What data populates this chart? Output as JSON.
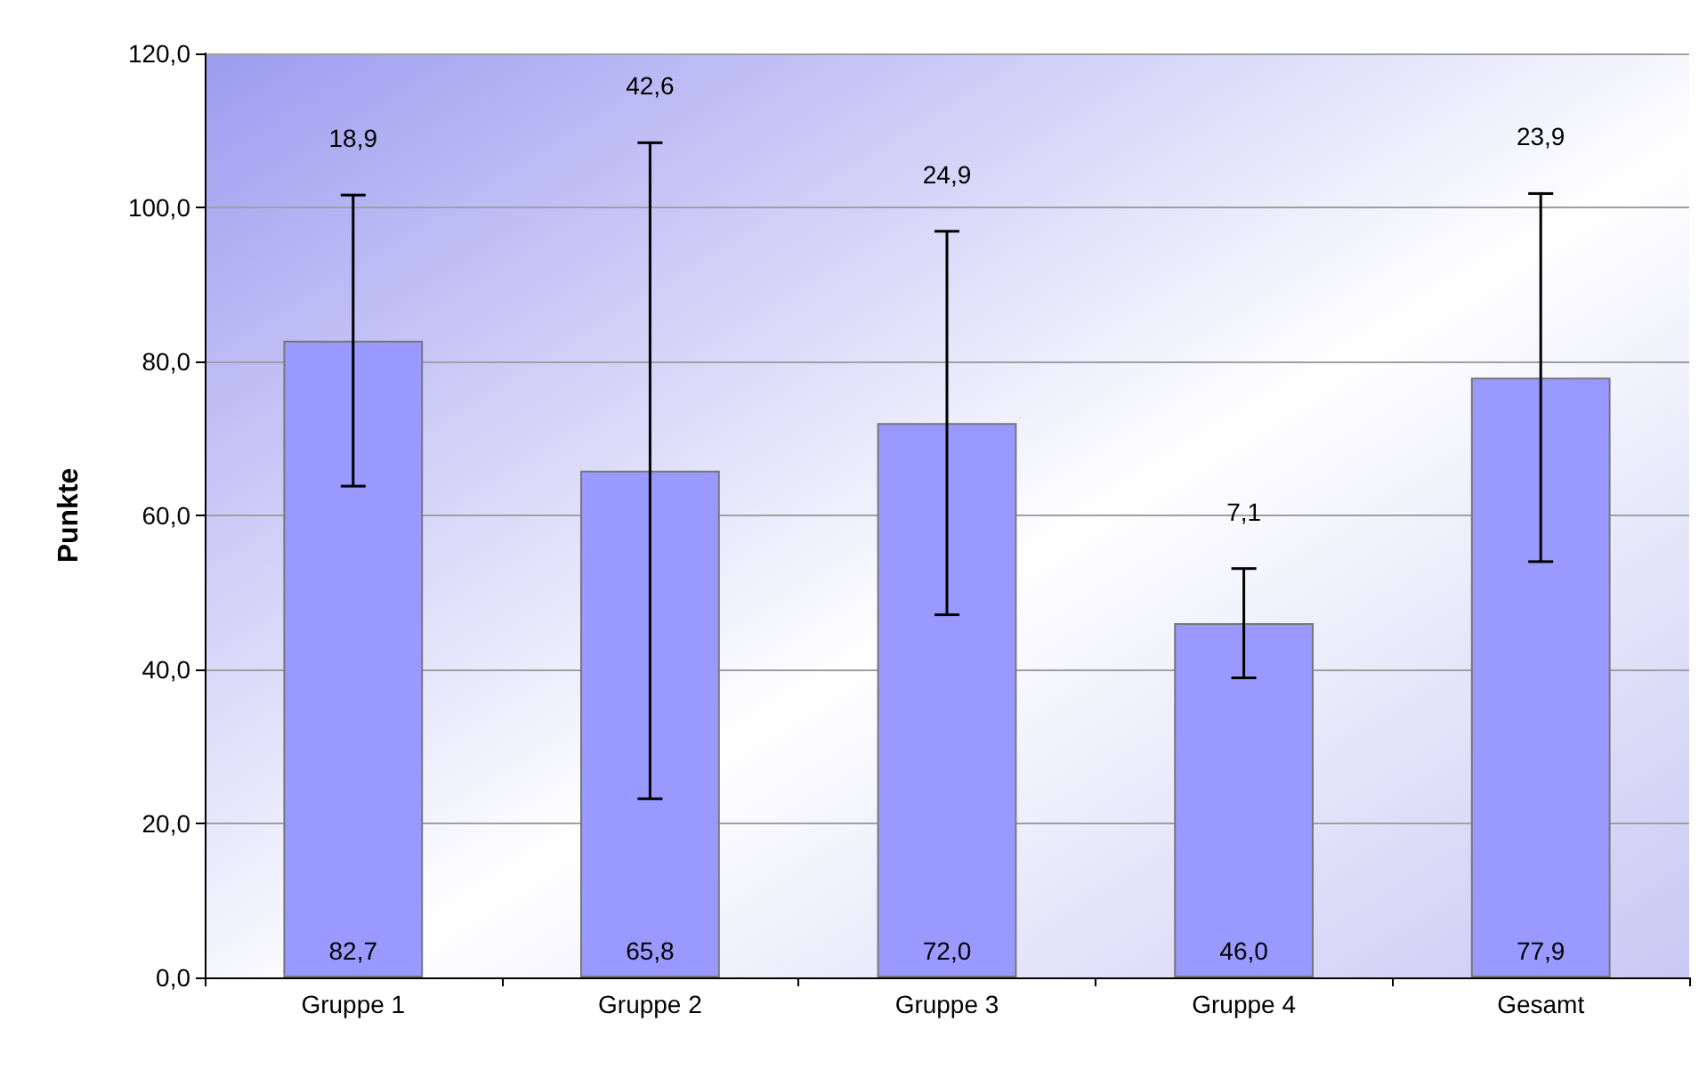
{
  "chart_data": {
    "type": "bar",
    "ylabel": "Punkte",
    "categories": [
      "Gruppe 1",
      "Gruppe 2",
      "Gruppe 3",
      "Gruppe 4",
      "Gesamt"
    ],
    "values": [
      82.7,
      65.8,
      72.0,
      46.0,
      77.9
    ],
    "value_labels": [
      "82,7",
      "65,8",
      "72,0",
      "46,0",
      "77,9"
    ],
    "errors": [
      18.9,
      42.6,
      24.9,
      7.1,
      23.9
    ],
    "color": "#9999ff",
    "annotations": [
      "18,9",
      "42,6",
      "24,9",
      "7,1",
      "23,9"
    ],
    "ylim": [
      0,
      120
    ],
    "yticks": [
      {
        "value": 0,
        "label": "0,0"
      },
      {
        "value": 20,
        "label": "20,0"
      },
      {
        "value": 40,
        "label": "40,0"
      },
      {
        "value": 60,
        "label": "60,0"
      },
      {
        "value": 80,
        "label": "80,0"
      },
      {
        "value": 100,
        "label": "100,0"
      },
      {
        "value": 120,
        "label": "120,0"
      }
    ],
    "grid": "y"
  }
}
